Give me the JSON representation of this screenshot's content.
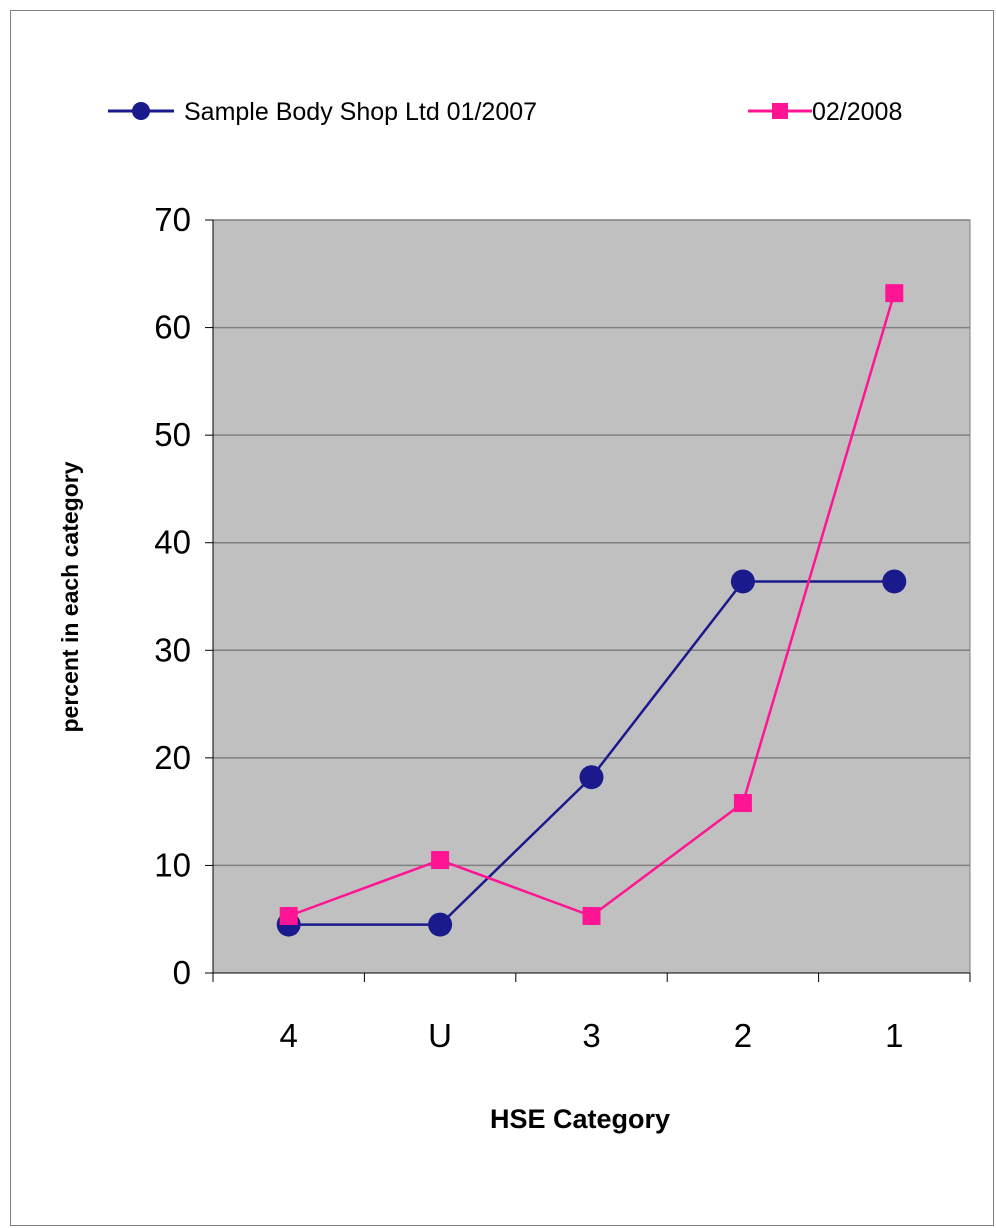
{
  "chart_data": {
    "type": "line",
    "title": "",
    "xlabel": "HSE Category",
    "ylabel": "percent in each category",
    "categories": [
      "4",
      "U",
      "3",
      "2",
      "1"
    ],
    "ylim": [
      0,
      70
    ],
    "yticks": [
      0,
      10,
      20,
      30,
      40,
      50,
      60,
      70
    ],
    "grid": true,
    "legend_position": "top",
    "plot_background": "#c0c0c0",
    "series": [
      {
        "name": "Sample Body Shop Ltd 01/2007",
        "color": "#1a1a8c",
        "marker": "circle",
        "values": [
          4.5,
          4.5,
          18.2,
          36.4,
          36.4
        ]
      },
      {
        "name": "02/2008",
        "color": "#ff1493",
        "marker": "square",
        "values": [
          5.3,
          10.5,
          5.3,
          15.8,
          63.2
        ]
      }
    ]
  }
}
